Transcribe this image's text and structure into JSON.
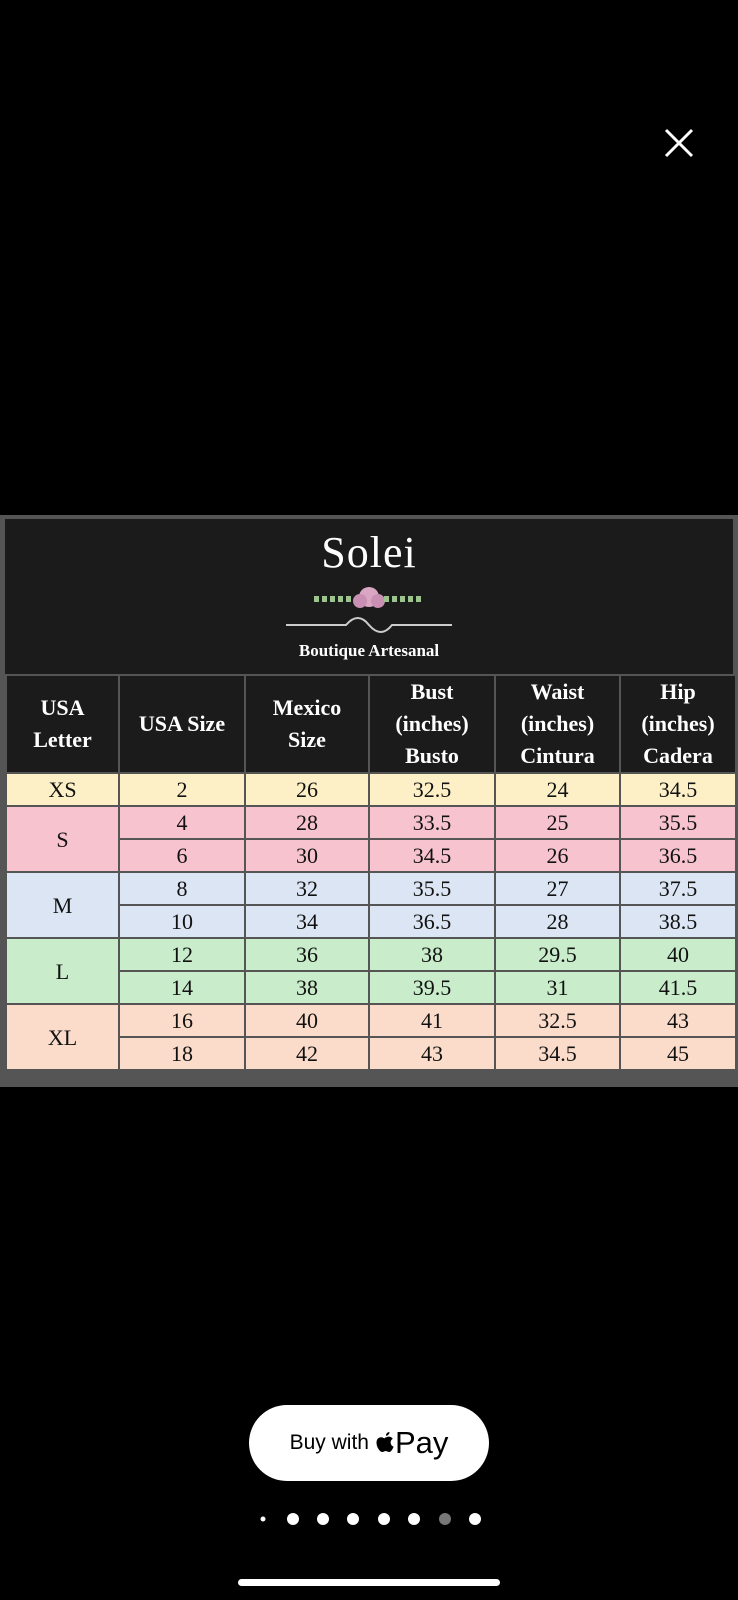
{
  "chart": {
    "brand": "Solei",
    "subtitle": "Boutique Artesanal",
    "columns": [
      [
        "USA",
        "Letter"
      ],
      [
        "USA Size"
      ],
      [
        "Mexico",
        "Size"
      ],
      [
        "Bust",
        "(inches)",
        "Busto"
      ],
      [
        "Waist",
        "(inches)",
        "Cintura"
      ],
      [
        "Hip",
        "(inches)",
        "Cadera"
      ]
    ],
    "groups": [
      {
        "letter": "XS",
        "rows": [
          [
            2,
            26,
            32.5,
            24,
            34.5
          ]
        ]
      },
      {
        "letter": "S",
        "rows": [
          [
            4,
            28,
            33.5,
            25,
            35.5
          ],
          [
            6,
            30,
            34.5,
            26,
            36.5
          ]
        ]
      },
      {
        "letter": "M",
        "rows": [
          [
            8,
            32,
            35.5,
            27,
            37.5
          ],
          [
            10,
            34,
            36.5,
            28,
            38.5
          ]
        ]
      },
      {
        "letter": "L",
        "rows": [
          [
            12,
            36,
            38,
            29.5,
            40
          ],
          [
            14,
            38,
            39.5,
            31,
            41.5
          ]
        ]
      },
      {
        "letter": "XL",
        "rows": [
          [
            16,
            40,
            41,
            32.5,
            43
          ],
          [
            18,
            42,
            43,
            34.5,
            45
          ]
        ]
      }
    ]
  },
  "button": {
    "label": "Buy with",
    "brand": "Pay"
  }
}
